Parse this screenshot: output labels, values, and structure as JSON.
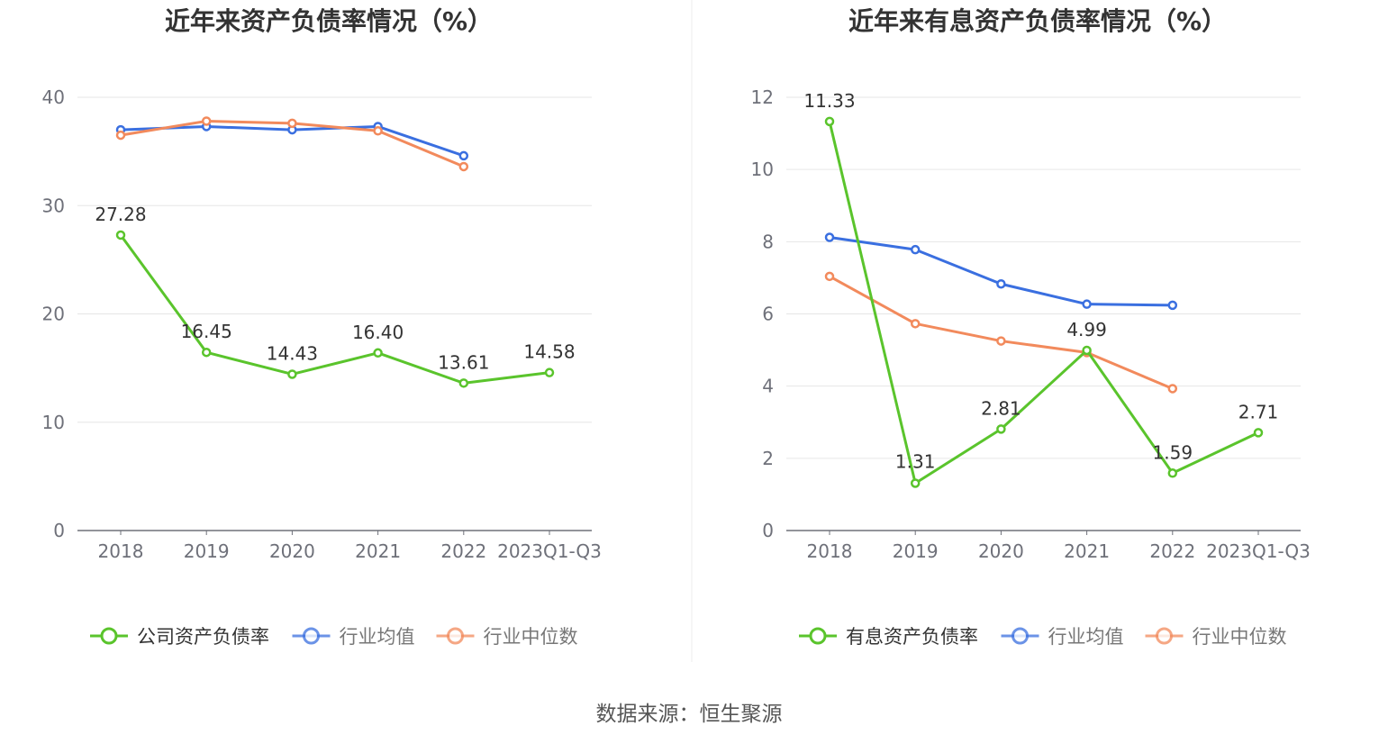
{
  "source_label": "数据来源：恒生聚源",
  "chart_data": [
    {
      "type": "line",
      "title": "近年来资产负债率情况（%）",
      "categories": [
        "2018",
        "2019",
        "2020",
        "2021",
        "2022",
        "2023Q1-Q3"
      ],
      "ylim": [
        0,
        40
      ],
      "yticks": [
        "0",
        "10",
        "20",
        "30",
        "40"
      ],
      "grid": true,
      "legend_position": "bottom",
      "series": [
        {
          "name": "公司资产负债率",
          "color": "#5ac42c",
          "values": [
            27.28,
            16.45,
            14.43,
            16.4,
            13.61,
            14.58
          ],
          "labels": [
            "27.28",
            "16.45",
            "14.43",
            "16.40",
            "13.61",
            "14.58"
          ]
        },
        {
          "name": "行业均值",
          "color": "#3a6fe0",
          "values": [
            37.0,
            37.3,
            37.0,
            37.3,
            34.6,
            null
          ]
        },
        {
          "name": "行业中位数",
          "color": "#f28a5c",
          "values": [
            36.5,
            37.8,
            37.6,
            36.9,
            33.6,
            null
          ]
        }
      ]
    },
    {
      "type": "line",
      "title": "近年来有息资产负债率情况（%）",
      "categories": [
        "2018",
        "2019",
        "2020",
        "2021",
        "2022",
        "2023Q1-Q3"
      ],
      "ylim": [
        0,
        12
      ],
      "yticks": [
        "0",
        "2",
        "4",
        "6",
        "8",
        "10",
        "12"
      ],
      "grid": true,
      "legend_position": "bottom",
      "series": [
        {
          "name": "有息资产负债率",
          "color": "#5ac42c",
          "values": [
            11.33,
            1.31,
            2.81,
            4.99,
            1.59,
            2.71
          ],
          "labels": [
            "11.33",
            "1.31",
            "2.81",
            "4.99",
            "1.59",
            "2.71"
          ]
        },
        {
          "name": "行业均值",
          "color": "#3a6fe0",
          "values": [
            8.12,
            7.78,
            6.83,
            6.27,
            6.24,
            null
          ]
        },
        {
          "name": "行业中位数",
          "color": "#f28a5c",
          "values": [
            7.04,
            5.73,
            5.25,
            4.93,
            3.93,
            null
          ]
        }
      ]
    }
  ]
}
